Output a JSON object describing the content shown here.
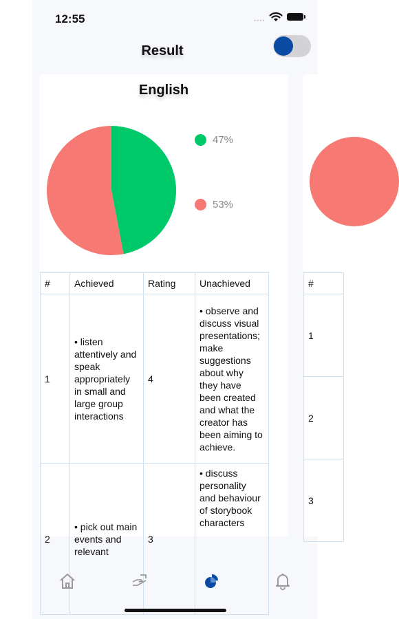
{
  "status": {
    "time": "12:55"
  },
  "header": {
    "title": "Result",
    "toggle_on": true
  },
  "colors": {
    "achieved": "#00c969",
    "unachieved": "#f67a73",
    "accent": "#0b4aa2"
  },
  "card": {
    "title": "English",
    "chart_data": {
      "type": "pie",
      "values": [
        47,
        53
      ],
      "labels": [
        "47%",
        "53%"
      ],
      "colors": [
        "#00c969",
        "#f67a73"
      ]
    },
    "table": {
      "headers": [
        "#",
        "Achieved",
        "Rating",
        "Unachieved"
      ],
      "rows": [
        {
          "num": "1",
          "achieved": "• listen attentively and speak appropriately in small and large group interactions",
          "rating": "4",
          "unachieved": "• observe and discuss visual presentations; make suggestions about why they have been created and what the creator has been aiming to achieve."
        },
        {
          "num": "2",
          "achieved": "• pick out main events and relevant",
          "rating": "3",
          "unachieved": "• discuss personality and behaviour of storybook characters"
        }
      ]
    }
  },
  "next_card": {
    "header": "#",
    "rows": [
      "1",
      "2",
      "3"
    ]
  },
  "tabbar": {
    "items": [
      "home-icon",
      "hand-icon",
      "chart-icon",
      "bell-icon"
    ],
    "active": 2
  }
}
